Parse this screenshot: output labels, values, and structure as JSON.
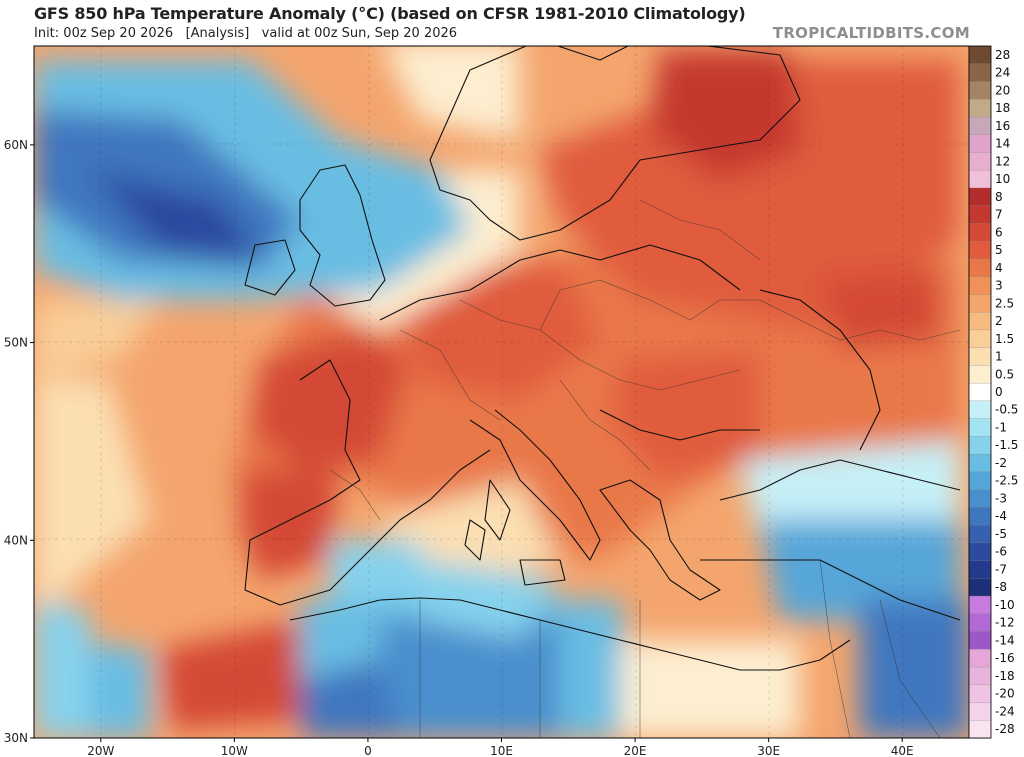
{
  "header": {
    "title": "GFS 850 hPa Temperature Anomaly (°C) (based on CFSR 1981-2010 Climatology)",
    "subtitle": "Init: 00z Sep 20 2026   [Analysis]   valid at 00z Sun, Sep 20 2026",
    "brand": "TROPICALTIDBITS.COM"
  },
  "map": {
    "region": "Europe / North Africa",
    "lat_labels": [
      "60N",
      "50N",
      "40N",
      "30N"
    ],
    "lon_labels": [
      "20W",
      "10W",
      "0",
      "10E",
      "20E",
      "30E",
      "40E"
    ],
    "lat_values": [
      60,
      50,
      40,
      30
    ],
    "lon_values": [
      -20,
      -10,
      0,
      10,
      20,
      30,
      40
    ]
  },
  "colorbar": {
    "labels": [
      "28",
      "24",
      "20",
      "18",
      "16",
      "14",
      "12",
      "10",
      "8",
      "7",
      "6",
      "5",
      "4",
      "3",
      "2.5",
      "2",
      "1.5",
      "1",
      "0.5",
      "0",
      "-0.5",
      "-1",
      "-1.5",
      "-2",
      "-2.5",
      "-3",
      "-4",
      "-5",
      "-6",
      "-7",
      "-8",
      "-10",
      "-12",
      "-14",
      "-16",
      "-18",
      "-20",
      "-24",
      "-28"
    ],
    "colors": [
      "#6e4a30",
      "#8a6546",
      "#a58464",
      "#c2a98a",
      "#c7a8b8",
      "#e0a3c9",
      "#e8aed0",
      "#f0bfd9",
      "#b52c2c",
      "#c5382f",
      "#d44a36",
      "#e05c3d",
      "#e97849",
      "#f1915a",
      "#f4a56d",
      "#f7bb82",
      "#f9ce98",
      "#fbdfb3",
      "#fdeed0",
      "#ffffff",
      "#c6f0f7",
      "#a5e3f2",
      "#86d2ec",
      "#69bde3",
      "#56a6d9",
      "#4a8fcd",
      "#3f77bf",
      "#3660b0",
      "#2c4a9e",
      "#243a8c",
      "#1e2f7a",
      "#c77be0",
      "#b269d6",
      "#9d57c8",
      "#e6a6d8",
      "#e8b4dd",
      "#efc3e4",
      "#f4d2ea",
      "#f8e3f0"
    ]
  }
}
